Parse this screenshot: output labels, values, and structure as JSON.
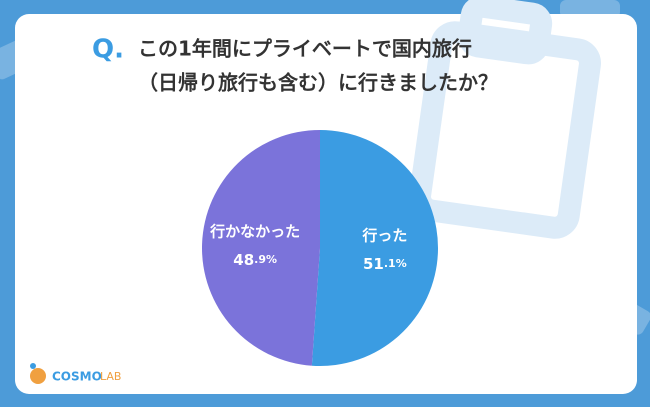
{
  "chart_data": {
    "type": "pie",
    "title_marker": "Q.",
    "title_lines": [
      "この1年間にプライベートで国内旅行",
      "（日帰り旅行も含む）に行きましたか？"
    ],
    "categories": [
      "行った",
      "行かなかった"
    ],
    "values": [
      51.1,
      48.9
    ],
    "value_labels": [
      "51.1%",
      "48.9%"
    ],
    "colors": [
      "#3b9ce2",
      "#7b73da"
    ],
    "logo": [
      "COSMO",
      "LAB"
    ]
  }
}
